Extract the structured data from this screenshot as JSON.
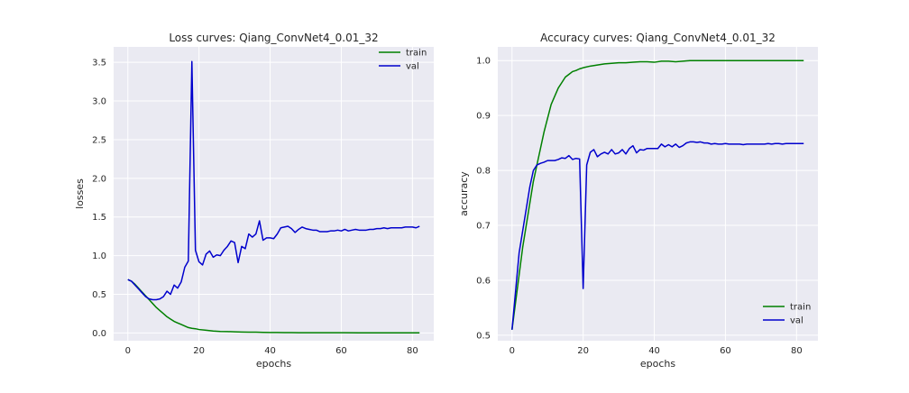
{
  "chart_data": [
    {
      "type": "line",
      "title": "Loss curves: Qiang_ConvNet4_0.01_32",
      "xlabel": "epochs",
      "ylabel": "losses",
      "xlim": [
        -4,
        86
      ],
      "ylim": [
        -0.1,
        3.7
      ],
      "xticks": [
        0,
        20,
        40,
        60,
        80
      ],
      "yticks": [
        0.0,
        0.5,
        1.0,
        1.5,
        2.0,
        2.5,
        3.0,
        3.5
      ],
      "ytick_labels": [
        "0.0",
        "0.5",
        "1.0",
        "1.5",
        "2.0",
        "2.5",
        "3.0",
        "3.5"
      ],
      "grid": true,
      "legend": "top-right",
      "series": [
        {
          "name": "train",
          "color": "#008000",
          "x": [
            0,
            1,
            2,
            3,
            4,
            5,
            6,
            7,
            8,
            9,
            10,
            11,
            12,
            13,
            14,
            15,
            16,
            17,
            18,
            19,
            20,
            22,
            24,
            26,
            28,
            30,
            32,
            34,
            36,
            38,
            40,
            42,
            44,
            46,
            48,
            50,
            55,
            60,
            65,
            70,
            75,
            80,
            82
          ],
          "y": [
            0.69,
            0.67,
            0.63,
            0.58,
            0.53,
            0.48,
            0.43,
            0.38,
            0.33,
            0.29,
            0.25,
            0.21,
            0.18,
            0.15,
            0.13,
            0.11,
            0.09,
            0.07,
            0.06,
            0.055,
            0.045,
            0.035,
            0.025,
            0.02,
            0.018,
            0.015,
            0.012,
            0.01,
            0.01,
            0.008,
            0.007,
            0.006,
            0.005,
            0.005,
            0.004,
            0.004,
            0.003,
            0.003,
            0.002,
            0.002,
            0.002,
            0.002,
            0.002
          ]
        },
        {
          "name": "val",
          "color": "#0000cd",
          "x": [
            0,
            1,
            2,
            3,
            4,
            5,
            6,
            7,
            8,
            9,
            10,
            11,
            12,
            13,
            14,
            15,
            16,
            17,
            18,
            19,
            20,
            21,
            22,
            23,
            24,
            25,
            26,
            27,
            28,
            29,
            30,
            31,
            32,
            33,
            34,
            35,
            36,
            37,
            38,
            39,
            40,
            41,
            42,
            43,
            44,
            45,
            46,
            47,
            48,
            49,
            50,
            51,
            52,
            53,
            54,
            55,
            56,
            57,
            58,
            59,
            60,
            61,
            62,
            63,
            64,
            65,
            66,
            67,
            68,
            69,
            70,
            71,
            72,
            73,
            74,
            75,
            76,
            77,
            78,
            79,
            80,
            81,
            82
          ],
          "y": [
            0.69,
            0.67,
            0.62,
            0.57,
            0.52,
            0.47,
            0.44,
            0.43,
            0.43,
            0.44,
            0.47,
            0.54,
            0.5,
            0.62,
            0.58,
            0.66,
            0.85,
            0.93,
            3.51,
            1.07,
            0.92,
            0.88,
            1.02,
            1.06,
            0.98,
            1.01,
            1.0,
            1.07,
            1.12,
            1.19,
            1.17,
            0.91,
            1.12,
            1.09,
            1.28,
            1.24,
            1.28,
            1.45,
            1.2,
            1.23,
            1.23,
            1.22,
            1.28,
            1.36,
            1.37,
            1.38,
            1.35,
            1.3,
            1.34,
            1.37,
            1.35,
            1.34,
            1.33,
            1.33,
            1.31,
            1.31,
            1.31,
            1.32,
            1.32,
            1.33,
            1.32,
            1.34,
            1.32,
            1.33,
            1.34,
            1.33,
            1.33,
            1.33,
            1.34,
            1.34,
            1.35,
            1.35,
            1.36,
            1.35,
            1.36,
            1.36,
            1.36,
            1.36,
            1.37,
            1.37,
            1.37,
            1.36,
            1.38
          ]
        }
      ]
    },
    {
      "type": "line",
      "title": "Accuracy curves: Qiang_ConvNet4_0.01_32",
      "xlabel": "epochs",
      "ylabel": "accuracy",
      "xlim": [
        -4,
        86
      ],
      "ylim": [
        0.49,
        1.025
      ],
      "xticks": [
        0,
        20,
        40,
        60,
        80
      ],
      "yticks": [
        0.5,
        0.6,
        0.7,
        0.8,
        0.9,
        1.0
      ],
      "ytick_labels": [
        "0.5",
        "0.6",
        "0.7",
        "0.8",
        "0.9",
        "1.0"
      ],
      "grid": true,
      "legend": "bottom-right",
      "series": [
        {
          "name": "train",
          "color": "#008000",
          "x": [
            0,
            1,
            2,
            3,
            4,
            5,
            6,
            7,
            8,
            9,
            10,
            11,
            12,
            13,
            14,
            15,
            16,
            17,
            18,
            19,
            20,
            22,
            24,
            26,
            28,
            30,
            32,
            34,
            36,
            38,
            40,
            42,
            44,
            46,
            48,
            50,
            55,
            60,
            65,
            70,
            75,
            80,
            82
          ],
          "y": [
            0.51,
            0.56,
            0.61,
            0.66,
            0.7,
            0.74,
            0.78,
            0.81,
            0.84,
            0.87,
            0.895,
            0.92,
            0.935,
            0.95,
            0.96,
            0.97,
            0.975,
            0.98,
            0.982,
            0.985,
            0.987,
            0.99,
            0.992,
            0.994,
            0.995,
            0.996,
            0.996,
            0.997,
            0.998,
            0.998,
            0.997,
            0.999,
            0.999,
            0.998,
            0.999,
            1.0,
            1.0,
            1.0,
            1.0,
            1.0,
            1.0,
            1.0,
            1.0
          ]
        },
        {
          "name": "val",
          "color": "#0000cd",
          "x": [
            0,
            1,
            2,
            3,
            4,
            5,
            6,
            7,
            8,
            9,
            10,
            11,
            12,
            13,
            14,
            15,
            16,
            17,
            18,
            19,
            20,
            21,
            22,
            23,
            24,
            25,
            26,
            27,
            28,
            29,
            30,
            31,
            32,
            33,
            34,
            35,
            36,
            37,
            38,
            39,
            40,
            41,
            42,
            43,
            44,
            45,
            46,
            47,
            48,
            49,
            50,
            51,
            52,
            53,
            54,
            55,
            56,
            57,
            58,
            59,
            60,
            61,
            62,
            63,
            64,
            65,
            66,
            67,
            68,
            69,
            70,
            71,
            72,
            73,
            74,
            75,
            76,
            77,
            78,
            79,
            80,
            81,
            82
          ],
          "y": [
            0.51,
            0.58,
            0.65,
            0.69,
            0.73,
            0.77,
            0.8,
            0.81,
            0.813,
            0.815,
            0.818,
            0.818,
            0.818,
            0.82,
            0.823,
            0.822,
            0.827,
            0.82,
            0.822,
            0.821,
            0.585,
            0.81,
            0.833,
            0.838,
            0.825,
            0.83,
            0.833,
            0.83,
            0.838,
            0.83,
            0.832,
            0.838,
            0.83,
            0.84,
            0.845,
            0.832,
            0.838,
            0.837,
            0.84,
            0.84,
            0.84,
            0.84,
            0.848,
            0.843,
            0.847,
            0.843,
            0.848,
            0.842,
            0.845,
            0.85,
            0.852,
            0.852,
            0.851,
            0.852,
            0.85,
            0.85,
            0.848,
            0.849,
            0.848,
            0.848,
            0.849,
            0.848,
            0.848,
            0.848,
            0.848,
            0.847,
            0.848,
            0.848,
            0.848,
            0.848,
            0.848,
            0.848,
            0.849,
            0.848,
            0.849,
            0.849,
            0.848,
            0.849,
            0.849,
            0.849,
            0.849,
            0.849,
            0.849
          ]
        }
      ]
    }
  ]
}
